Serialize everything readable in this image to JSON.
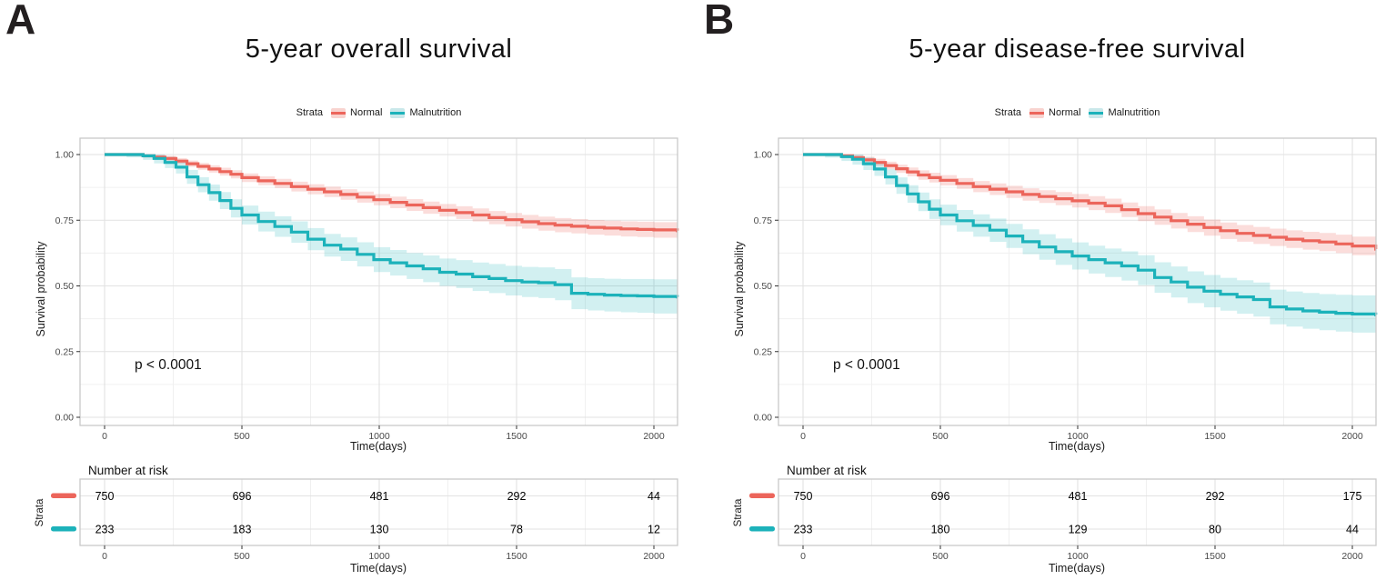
{
  "figure": {
    "panels": [
      {
        "letter": "A"
      },
      {
        "letter": "B"
      }
    ]
  },
  "colors": {
    "normal": "#EC655B",
    "malnutrition": "#1CB2BA",
    "normal_band": "#F8D3CF",
    "malnutrition_band": "#C9E8EA",
    "grid_major": "#E2E2E2",
    "grid_minor": "#F0F0F0",
    "panel_border": "#C8C8C8",
    "tick_text": "#4A4A4A"
  },
  "chart_data": [
    {
      "type": "line",
      "title": "5-year overall survival",
      "legend_title": "Strata",
      "legend_position": "top",
      "pvalue": "p < 0.0001",
      "xlabel": "Time(days)",
      "ylabel": "Survival probability",
      "xlim": [
        0,
        2085
      ],
      "ylim": [
        0,
        1
      ],
      "xticks": [
        0,
        500,
        1000,
        1500,
        2000
      ],
      "xticks_minor": [
        250,
        750,
        1250,
        1750
      ],
      "yticks": [
        0,
        0.25,
        0.5,
        0.75,
        1
      ],
      "ytick_labels": [
        "0.00",
        "0.25",
        "0.50",
        "0.75",
        "1.00"
      ],
      "yticks_minor": [
        0.125,
        0.375,
        0.625,
        0.875
      ],
      "grid": true,
      "series": [
        {
          "name": "Normal",
          "color": "#EC655B",
          "band_color": "#EC655B",
          "band_opacity": 0.22,
          "ci_end": 0.03,
          "x": [
            0,
            80,
            140,
            180,
            220,
            260,
            300,
            340,
            380,
            420,
            460,
            500,
            560,
            620,
            680,
            740,
            800,
            860,
            920,
            980,
            1040,
            1100,
            1160,
            1220,
            1280,
            1340,
            1400,
            1460,
            1520,
            1580,
            1640,
            1700,
            1760,
            1820,
            1880,
            1940,
            2000,
            2085
          ],
          "y": [
            1,
            1,
            0.995,
            0.99,
            0.985,
            0.975,
            0.965,
            0.955,
            0.945,
            0.935,
            0.925,
            0.912,
            0.9,
            0.89,
            0.878,
            0.868,
            0.858,
            0.848,
            0.838,
            0.828,
            0.818,
            0.808,
            0.798,
            0.788,
            0.779,
            0.77,
            0.76,
            0.752,
            0.744,
            0.737,
            0.731,
            0.727,
            0.723,
            0.72,
            0.717,
            0.715,
            0.713,
            0.71
          ]
        },
        {
          "name": "Malnutrition",
          "color": "#1CB2BA",
          "band_color": "#1CB2BA",
          "band_opacity": 0.2,
          "ci_end": 0.066,
          "x": [
            0,
            80,
            140,
            180,
            220,
            260,
            300,
            340,
            380,
            420,
            460,
            500,
            560,
            620,
            680,
            740,
            800,
            860,
            920,
            980,
            1040,
            1100,
            1160,
            1220,
            1280,
            1340,
            1400,
            1460,
            1520,
            1580,
            1640,
            1700,
            1760,
            1820,
            1880,
            1940,
            2000,
            2085
          ],
          "y": [
            1,
            1,
            0.995,
            0.985,
            0.97,
            0.952,
            0.915,
            0.885,
            0.855,
            0.825,
            0.795,
            0.77,
            0.745,
            0.726,
            0.705,
            0.678,
            0.655,
            0.64,
            0.62,
            0.6,
            0.588,
            0.576,
            0.565,
            0.552,
            0.545,
            0.535,
            0.528,
            0.52,
            0.515,
            0.512,
            0.505,
            0.472,
            0.468,
            0.465,
            0.463,
            0.462,
            0.46,
            0.458
          ]
        }
      ],
      "risk_table": {
        "title": "Number at risk",
        "ylabel": "Strata",
        "xlabel": "Time(days)",
        "xticks": [
          0,
          500,
          1000,
          1500,
          2000
        ],
        "rows": [
          {
            "name": "Normal",
            "color": "#EC655B",
            "values": [
              "750",
              "696",
              "481",
              "292",
              "44"
            ]
          },
          {
            "name": "Malnutrition",
            "color": "#1CB2BA",
            "values": [
              "233",
              "183",
              "130",
              "78",
              "12"
            ]
          }
        ]
      }
    },
    {
      "type": "line",
      "title": "5-year disease-free survival",
      "legend_title": "Strata",
      "legend_position": "top",
      "pvalue": "p < 0.0001",
      "xlabel": "Time(days)",
      "ylabel": "Survival probability",
      "xlim": [
        0,
        2085
      ],
      "ylim": [
        0,
        1
      ],
      "xticks": [
        0,
        500,
        1000,
        1500,
        2000
      ],
      "xticks_minor": [
        250,
        750,
        1250,
        1750
      ],
      "yticks": [
        0,
        0.25,
        0.5,
        0.75,
        1
      ],
      "ytick_labels": [
        "0.00",
        "0.25",
        "0.50",
        "0.75",
        "1.00"
      ],
      "yticks_minor": [
        0.125,
        0.375,
        0.625,
        0.875
      ],
      "grid": true,
      "series": [
        {
          "name": "Normal",
          "color": "#EC655B",
          "band_color": "#EC655B",
          "band_opacity": 0.22,
          "ci_end": 0.036,
          "x": [
            0,
            80,
            140,
            180,
            220,
            260,
            300,
            340,
            380,
            420,
            460,
            500,
            560,
            620,
            680,
            740,
            800,
            860,
            920,
            980,
            1040,
            1100,
            1160,
            1220,
            1280,
            1340,
            1400,
            1460,
            1520,
            1580,
            1640,
            1700,
            1760,
            1820,
            1880,
            1940,
            2000,
            2085
          ],
          "y": [
            1,
            1,
            0.995,
            0.988,
            0.98,
            0.97,
            0.958,
            0.946,
            0.934,
            0.922,
            0.912,
            0.902,
            0.89,
            0.878,
            0.868,
            0.858,
            0.848,
            0.84,
            0.832,
            0.824,
            0.815,
            0.805,
            0.79,
            0.775,
            0.762,
            0.748,
            0.735,
            0.722,
            0.71,
            0.7,
            0.692,
            0.685,
            0.678,
            0.672,
            0.667,
            0.66,
            0.652,
            0.64
          ]
        },
        {
          "name": "Malnutrition",
          "color": "#1CB2BA",
          "band_color": "#1CB2BA",
          "band_opacity": 0.2,
          "ci_end": 0.072,
          "x": [
            0,
            80,
            140,
            180,
            220,
            260,
            300,
            340,
            380,
            420,
            460,
            500,
            560,
            620,
            680,
            740,
            800,
            860,
            920,
            980,
            1040,
            1100,
            1160,
            1220,
            1280,
            1340,
            1400,
            1460,
            1520,
            1580,
            1640,
            1700,
            1760,
            1820,
            1880,
            1940,
            2000,
            2085
          ],
          "y": [
            1,
            1,
            0.992,
            0.982,
            0.965,
            0.945,
            0.915,
            0.882,
            0.85,
            0.82,
            0.792,
            0.77,
            0.748,
            0.73,
            0.712,
            0.69,
            0.668,
            0.648,
            0.63,
            0.614,
            0.6,
            0.588,
            0.576,
            0.56,
            0.532,
            0.515,
            0.495,
            0.48,
            0.468,
            0.458,
            0.448,
            0.42,
            0.412,
            0.405,
            0.4,
            0.396,
            0.393,
            0.39
          ]
        }
      ],
      "risk_table": {
        "title": "Number at risk",
        "ylabel": "Strata",
        "xlabel": "Time(days)",
        "xticks": [
          0,
          500,
          1000,
          1500,
          2000
        ],
        "rows": [
          {
            "name": "Normal",
            "color": "#EC655B",
            "values": [
              "750",
              "696",
              "481",
              "292",
              "175"
            ]
          },
          {
            "name": "Malnutrition",
            "color": "#1CB2BA",
            "values": [
              "233",
              "180",
              "129",
              "80",
              "44"
            ]
          }
        ]
      }
    }
  ]
}
